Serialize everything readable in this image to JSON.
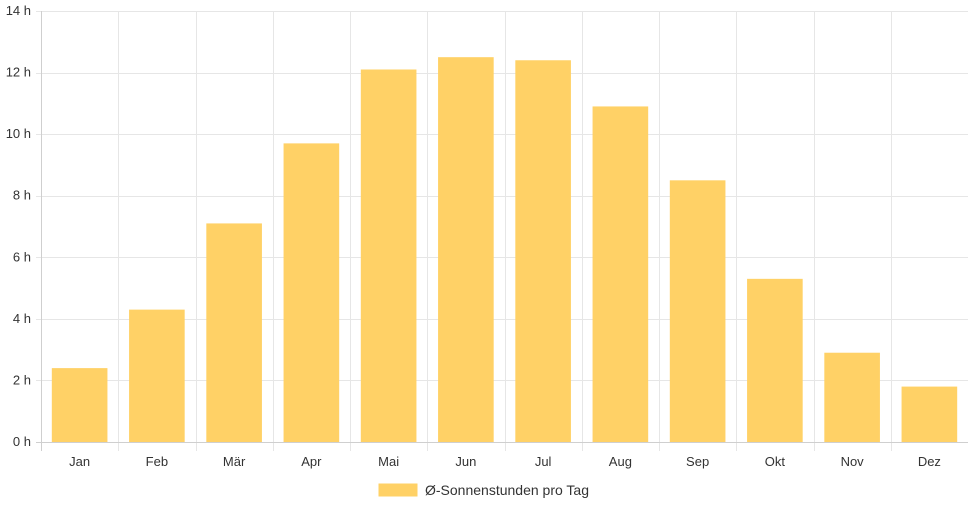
{
  "chart_data": {
    "type": "bar",
    "categories": [
      "Jan",
      "Feb",
      "Mär",
      "Apr",
      "Mai",
      "Jun",
      "Jul",
      "Aug",
      "Sep",
      "Okt",
      "Nov",
      "Dez"
    ],
    "series": [
      {
        "name": "Ø-Sonnenstunden pro Tag",
        "values": [
          2.4,
          4.3,
          7.1,
          9.7,
          12.1,
          12.5,
          12.4,
          10.9,
          8.5,
          5.3,
          2.9,
          1.8
        ]
      }
    ],
    "y_ticks": [
      "0 h",
      "2 h",
      "4 h",
      "6 h",
      "8 h",
      "10 h",
      "12 h",
      "14 h"
    ],
    "ylim": [
      0,
      14
    ],
    "y_step": 2,
    "grid": true,
    "legend_position": "bottom",
    "bar_color": "#FFD166",
    "grid_color": "#e6e6e6"
  }
}
